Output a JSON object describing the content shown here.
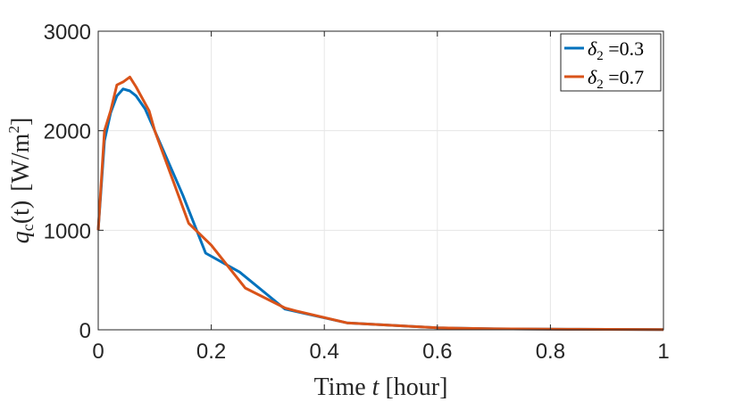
{
  "chart_data": {
    "type": "line",
    "xlabel": {
      "text": "Time ",
      "var": "t",
      "unit": " [hour]"
    },
    "ylabel": {
      "pre": "q",
      "sub": "c",
      "arg": "(t)",
      "unit": "[W/m",
      "sup": "2",
      "close": "]"
    },
    "xlim": [
      0,
      1
    ],
    "ylim": [
      0,
      3000
    ],
    "xticks": [
      0,
      0.2,
      0.4,
      0.6,
      0.8,
      1
    ],
    "xtick_labels": [
      "0",
      "0.2",
      "0.4",
      "0.6",
      "0.8",
      "1"
    ],
    "yticks": [
      0,
      1000,
      2000,
      3000
    ],
    "ytick_labels": [
      "0",
      "1000",
      "2000",
      "3000"
    ],
    "grid": true,
    "legend_position": "top-right",
    "series": [
      {
        "legend": {
          "sym": "δ",
          "sub": "2",
          "rest": " =0.3"
        },
        "color": "#0072BD",
        "x": [
          0,
          0.011,
          0.022,
          0.033,
          0.044,
          0.056,
          0.067,
          0.083,
          0.1,
          0.15,
          0.19,
          0.25,
          0.33,
          0.44,
          0.6,
          0.7,
          0.85,
          1.0
        ],
        "y": [
          1000,
          1900,
          2180,
          2350,
          2420,
          2400,
          2350,
          2220,
          2000,
          1350,
          770,
          580,
          210,
          70,
          20,
          10,
          5,
          2
        ]
      },
      {
        "legend": {
          "sym": "δ",
          "sub": "2",
          "rest": " =0.7"
        },
        "color": "#D95319",
        "x": [
          0,
          0.011,
          0.022,
          0.033,
          0.044,
          0.056,
          0.067,
          0.09,
          0.1,
          0.16,
          0.2,
          0.26,
          0.33,
          0.35,
          0.44,
          0.6,
          0.7,
          0.85,
          1.0
        ],
        "y": [
          1000,
          2000,
          2200,
          2460,
          2490,
          2540,
          2440,
          2200,
          2000,
          1070,
          850,
          420,
          220,
          190,
          70,
          20,
          10,
          5,
          2
        ]
      }
    ]
  }
}
